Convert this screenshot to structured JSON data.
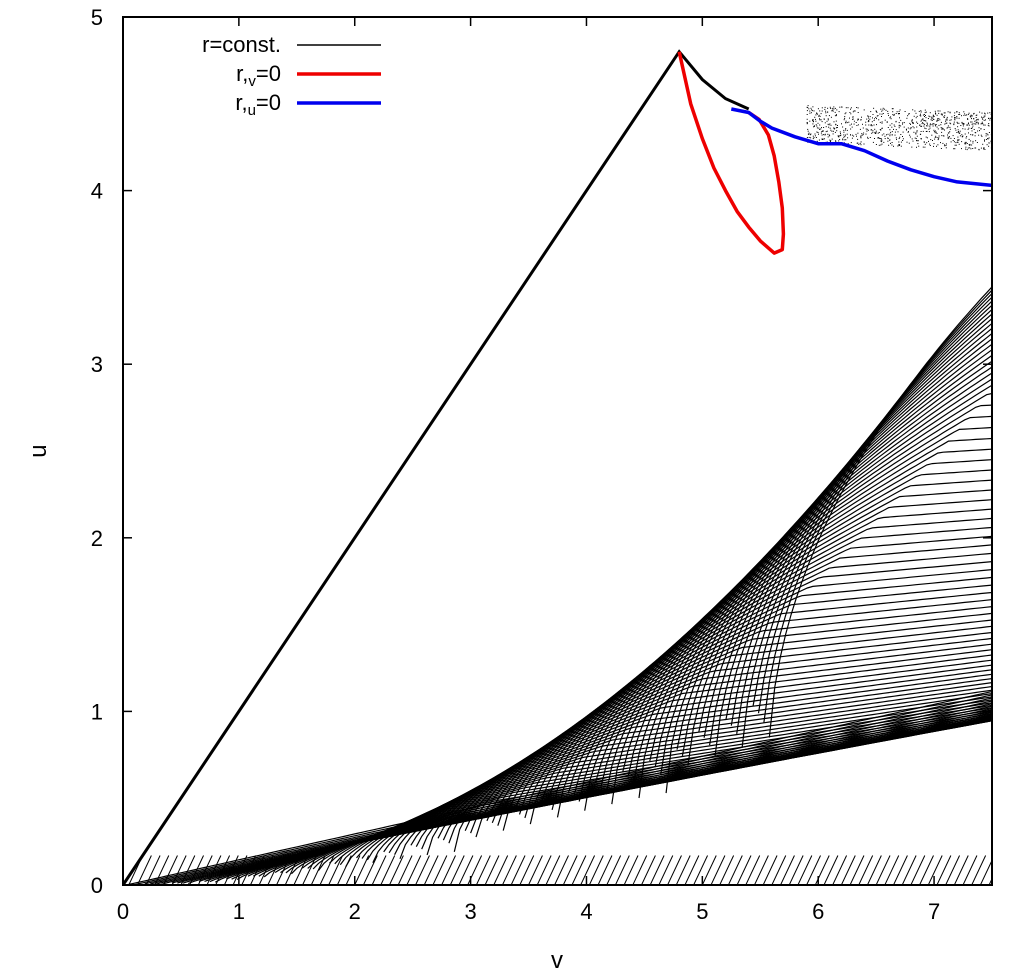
{
  "chart_data": {
    "type": "line",
    "xlabel": "v",
    "ylabel": "u",
    "xlim": [
      0,
      7.5
    ],
    "ylim": [
      0,
      5
    ],
    "xticks": [
      "0",
      "1",
      "2",
      "3",
      "4",
      "5",
      "6",
      "7"
    ],
    "yticks": [
      "0",
      "1",
      "2",
      "3",
      "4",
      "5"
    ],
    "grid": false,
    "legend_position": "top-left",
    "legend": [
      {
        "base": "r=const.",
        "sub": "",
        "tail": "",
        "color": "#000000"
      },
      {
        "base": "r,",
        "sub": "v",
        "tail": "=0",
        "color": "#ee0000"
      },
      {
        "base": "r,",
        "sub": "u",
        "tail": "=0",
        "color": "#0000ee"
      }
    ],
    "boundary": {
      "color": "#000000",
      "points": [
        [
          0,
          0
        ],
        [
          4.8,
          4.8
        ],
        [
          5.0,
          4.64
        ],
        [
          5.2,
          4.53
        ],
        [
          5.4,
          4.47
        ]
      ]
    },
    "contours": {
      "color": "#000000",
      "count": 95,
      "description_points": "family of r=const. level curves"
    },
    "series": [
      {
        "name": "r,v=0",
        "color": "#ee0000",
        "points": [
          [
            4.8,
            4.8
          ],
          [
            4.9,
            4.5
          ],
          [
            5.0,
            4.3
          ],
          [
            5.1,
            4.13
          ],
          [
            5.2,
            4.0
          ],
          [
            5.3,
            3.88
          ],
          [
            5.4,
            3.79
          ],
          [
            5.5,
            3.71
          ],
          [
            5.62,
            3.64
          ],
          [
            5.69,
            3.66
          ],
          [
            5.7,
            3.75
          ],
          [
            5.69,
            3.9
          ],
          [
            5.66,
            4.05
          ],
          [
            5.62,
            4.2
          ],
          [
            5.57,
            4.32
          ],
          [
            5.49,
            4.41
          ],
          [
            5.4,
            4.45
          ]
        ]
      },
      {
        "name": "r,u=0",
        "color": "#0000ee",
        "points": [
          [
            5.25,
            4.47
          ],
          [
            5.4,
            4.45
          ],
          [
            5.5,
            4.4
          ],
          [
            5.6,
            4.36
          ],
          [
            5.8,
            4.31
          ],
          [
            6.0,
            4.27
          ],
          [
            6.2,
            4.27
          ],
          [
            6.4,
            4.23
          ],
          [
            6.6,
            4.17
          ],
          [
            6.8,
            4.12
          ],
          [
            7.0,
            4.08
          ],
          [
            7.2,
            4.05
          ],
          [
            7.5,
            4.03
          ]
        ]
      }
    ]
  }
}
